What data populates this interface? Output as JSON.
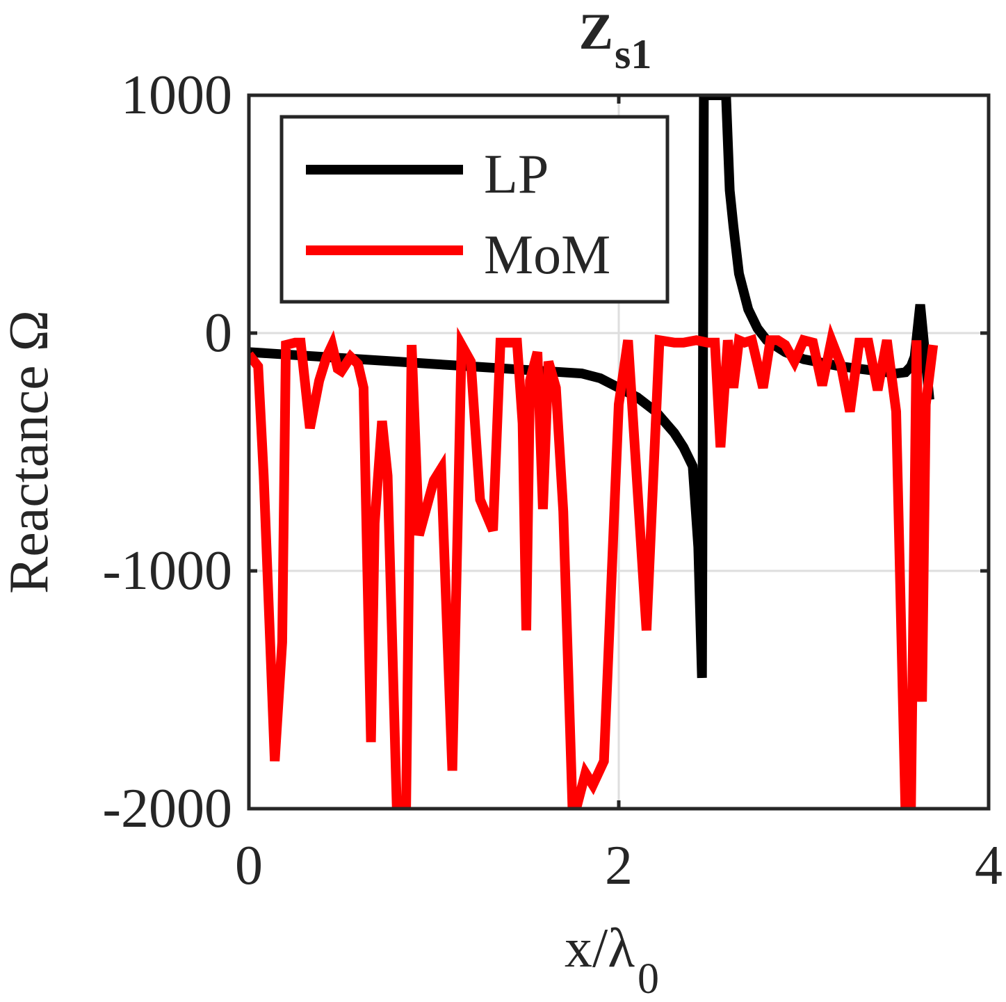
{
  "chart_data": {
    "type": "line",
    "title_main": "Z",
    "title_sub": "s1",
    "xlabel_main": "x/λ",
    "xlabel_sub": "0",
    "ylabel": "Reactance Ω",
    "xlim": [
      0,
      4
    ],
    "ylim": [
      -2000,
      1000
    ],
    "x_ticks": [
      0,
      2,
      4
    ],
    "x_tick_labels": [
      "0",
      "2",
      "4"
    ],
    "y_ticks": [
      -2000,
      -1000,
      0,
      1000
    ],
    "y_tick_labels": [
      "-2000",
      "-1000",
      "0",
      "1000"
    ],
    "grid": true,
    "legend": {
      "location": "top-left",
      "entries": [
        "LP",
        "MoM"
      ]
    },
    "colors": {
      "LP": "#000000",
      "MoM": "#ff0000",
      "axes": "#262626",
      "grid": "#dedede"
    },
    "series": [
      {
        "name": "LP",
        "x": [
          0,
          0.2,
          0.4,
          0.6,
          0.8,
          1.0,
          1.2,
          1.4,
          1.6,
          1.8,
          1.9,
          2.0,
          2.1,
          2.2,
          2.3,
          2.35,
          2.4,
          2.43,
          2.45,
          2.46,
          2.47,
          2.48,
          2.5,
          2.52,
          2.54,
          2.58,
          2.6,
          2.62,
          2.65,
          2.7,
          2.75,
          2.8,
          2.9,
          3.0,
          3.2,
          3.4,
          3.5,
          3.55,
          3.58,
          3.6,
          3.63,
          3.65,
          3.68
        ],
        "y": [
          -80,
          -90,
          -100,
          -110,
          -120,
          -130,
          -140,
          -150,
          -160,
          -170,
          -190,
          -230,
          -270,
          -330,
          -420,
          -480,
          -560,
          -900,
          -1450,
          1000,
          1000,
          1000,
          1000,
          1000,
          1000,
          1000,
          600,
          450,
          250,
          100,
          20,
          -30,
          -80,
          -110,
          -140,
          -160,
          -170,
          -165,
          -140,
          -100,
          120,
          -40,
          -280
        ]
      },
      {
        "name": "MoM",
        "x": [
          0,
          0.05,
          0.08,
          0.14,
          0.18,
          0.2,
          0.25,
          0.28,
          0.33,
          0.38,
          0.42,
          0.45,
          0.48,
          0.5,
          0.55,
          0.59,
          0.62,
          0.66,
          0.68,
          0.72,
          0.75,
          0.8,
          0.85,
          0.88,
          0.92,
          1.0,
          1.04,
          1.1,
          1.15,
          1.2,
          1.25,
          1.32,
          1.36,
          1.4,
          1.45,
          1.48,
          1.5,
          1.52,
          1.56,
          1.59,
          1.62,
          1.66,
          1.7,
          1.75,
          1.77,
          1.82,
          1.86,
          1.92,
          2.0,
          2.05,
          2.15,
          2.22,
          2.3,
          2.35,
          2.42,
          2.48,
          2.52,
          2.55,
          2.59,
          2.62,
          2.65,
          2.68,
          2.72,
          2.78,
          2.82,
          2.86,
          2.9,
          2.95,
          3.0,
          3.05,
          3.1,
          3.15,
          3.2,
          3.25,
          3.3,
          3.35,
          3.4,
          3.45,
          3.5,
          3.55,
          3.58,
          3.61,
          3.64,
          3.66,
          3.7
        ],
        "y": [
          -90,
          -140,
          -600,
          -1800,
          -1300,
          -50,
          -40,
          -40,
          -400,
          -200,
          -100,
          -50,
          -150,
          -160,
          -100,
          -130,
          -230,
          -1720,
          -800,
          -370,
          -600,
          -2000,
          -2000,
          -50,
          -850,
          -620,
          -570,
          -1840,
          -50,
          -120,
          -700,
          -830,
          -40,
          -40,
          -40,
          -380,
          -1250,
          -200,
          -80,
          -740,
          -120,
          -230,
          -750,
          -2000,
          -2000,
          -1850,
          -1900,
          -1800,
          -300,
          -30,
          -1250,
          -30,
          -40,
          -40,
          -30,
          -40,
          -40,
          -480,
          -30,
          -230,
          -30,
          -40,
          -30,
          -230,
          -30,
          -30,
          -50,
          -120,
          -30,
          -40,
          -220,
          -30,
          -130,
          -330,
          -40,
          -40,
          -240,
          -30,
          -330,
          -2000,
          -2000,
          -30,
          -1550,
          -300,
          -50
        ]
      }
    ]
  }
}
